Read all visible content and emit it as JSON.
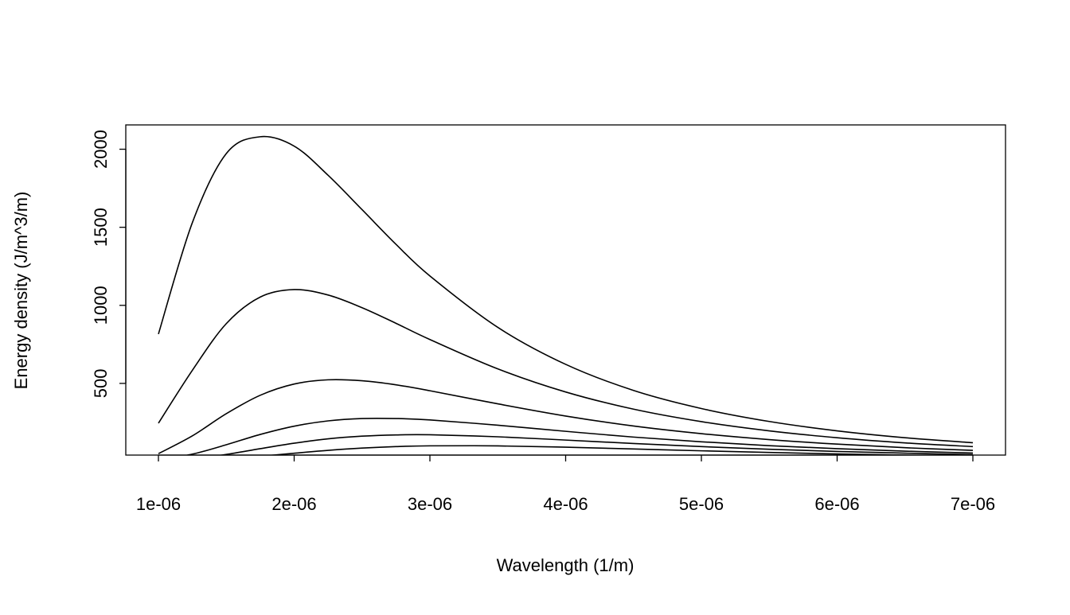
{
  "chart_data": {
    "type": "line",
    "title": "",
    "xlabel": "Wavelength (1/m)",
    "ylabel": "Energy density (J/m^3/m)",
    "xlim": [
      1e-06,
      7e-06
    ],
    "ylim": [
      40,
      2158
    ],
    "grid": false,
    "legend": "none",
    "line_color": "#000000",
    "x_ticks": [
      1e-06,
      2e-06,
      3e-06,
      4e-06,
      5e-06,
      6e-06,
      7e-06
    ],
    "x_tick_labels": [
      "1e-06",
      "2e-06",
      "3e-06",
      "4e-06",
      "5e-06",
      "6e-06",
      "7e-06"
    ],
    "y_ticks": [
      500,
      1000,
      1500,
      2000
    ],
    "y_tick_labels": [
      "500",
      "1000",
      "1500",
      "2000"
    ],
    "x": [
      1e-06,
      1.25e-06,
      1.5e-06,
      1.75e-06,
      2e-06,
      2.25e-06,
      2.5e-06,
      2.75e-06,
      3e-06,
      3.5e-06,
      4e-06,
      4.5e-06,
      5e-06,
      5.5e-06,
      6e-06,
      6.5e-06,
      7e-06
    ],
    "series": [
      {
        "values": [
          816,
          1530,
          1972,
          2080,
          2020,
          1833,
          1613,
          1391,
          1188,
          859,
          622,
          455,
          339,
          256,
          196,
          152,
          120
        ]
      },
      {
        "values": [
          245,
          584,
          883,
          1053,
          1101,
          1066,
          985,
          885,
          781,
          593,
          445,
          335,
          255,
          196,
          152,
          119,
          95
        ]
      },
      {
        "values": [
          50,
          164,
          306,
          424,
          496,
          523,
          517,
          491,
          453,
          369,
          291,
          227,
          178,
          140,
          111,
          88,
          71
        ]
      },
      {
        "values": [
          10.4,
          46.8,
          107,
          173,
          226,
          260,
          275,
          275,
          266,
          232,
          193,
          156,
          126,
          101,
          82,
          66,
          54
        ]
      },
      {
        "values": [
          2.8,
          16.4,
          44.9,
          81.8,
          117,
          145,
          162,
          170,
          171,
          158,
          137,
          115,
          95,
          78,
          64,
          53,
          44
        ]
      },
      {
        "values": [
          0.57,
          4.6,
          15.5,
          32.8,
          52.7,
          71.2,
          85.5,
          95.2,
          100,
          99.7,
          91.3,
          79.9,
          68.1,
          57.4,
          48.0,
          40.2,
          33.7
        ]
      }
    ]
  }
}
